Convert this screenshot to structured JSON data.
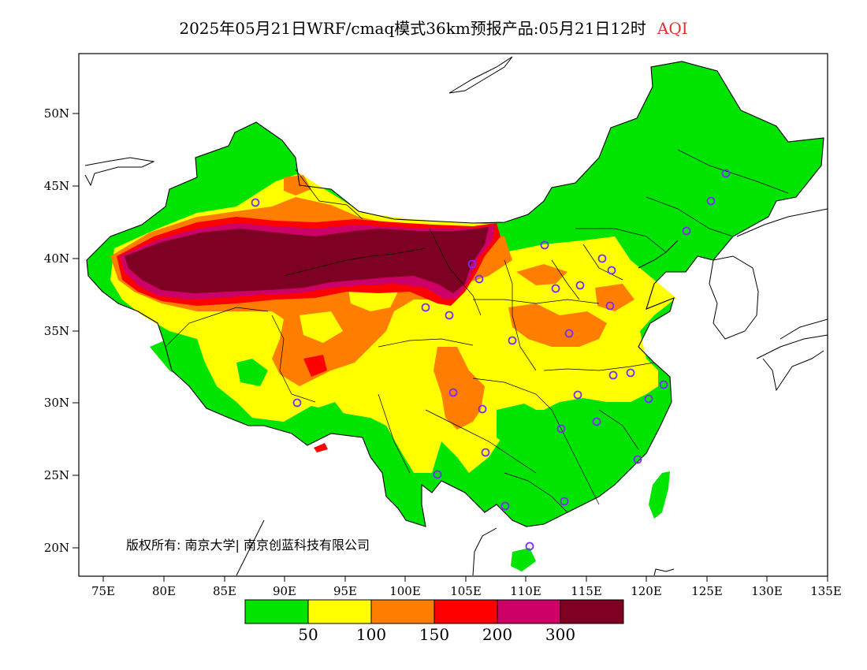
{
  "title": {
    "main": "2025年05月21日WRF/cmaq模式36km预报产品:05月21日12时",
    "variable": "AQI",
    "variable_color": "#e03030"
  },
  "axes": {
    "lat_ticks": [
      "20N",
      "25N",
      "30N",
      "35N",
      "40N",
      "45N",
      "50N"
    ],
    "lon_ticks": [
      "75E",
      "80E",
      "85E",
      "90E",
      "95E",
      "100E",
      "105E",
      "110E",
      "115E",
      "120E",
      "125E",
      "130E",
      "135E"
    ]
  },
  "copyright": "版权所有: 南京大学| 南京创蓝科技有限公司",
  "colorbar": {
    "colors": [
      "#00e400",
      "#ffff00",
      "#ff7e00",
      "#ff0000",
      "#cc0066",
      "#7e0023"
    ],
    "labels": [
      "50",
      "100",
      "150",
      "200",
      "300"
    ]
  },
  "station_marker_color": "#7a2cff"
}
